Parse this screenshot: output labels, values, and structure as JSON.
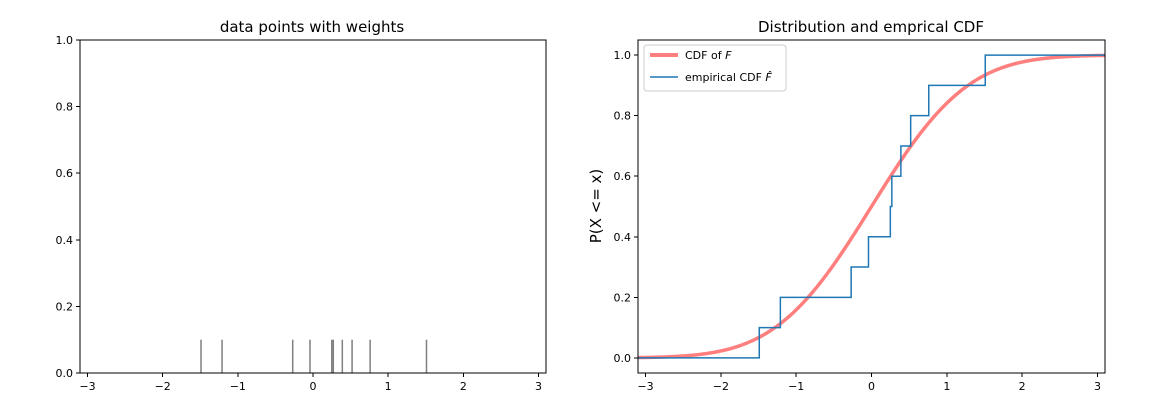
{
  "chart_data": [
    {
      "type": "rug",
      "title": "data points with weights",
      "xlabel": "",
      "ylabel": "",
      "xlim": [
        -3.1,
        3.1
      ],
      "ylim": [
        0.0,
        1.0
      ],
      "xticks": [
        -3,
        -2,
        -1,
        0,
        1,
        2,
        3
      ],
      "yticks": [
        0.0,
        0.2,
        0.4,
        0.6,
        0.8,
        1.0
      ],
      "xtick_labels": [
        "−3",
        "−2",
        "−1",
        "0",
        "1",
        "2",
        "3"
      ],
      "ytick_labels": [
        "0.0",
        "0.2",
        "0.4",
        "0.6",
        "0.8",
        "1.0"
      ],
      "points": [
        -1.49,
        -1.21,
        -0.27,
        -0.04,
        0.25,
        0.27,
        0.39,
        0.52,
        0.76,
        1.51
      ],
      "weight": 0.1,
      "color": "#808080"
    },
    {
      "type": "line",
      "title": "Distribution and emprical CDF",
      "xlabel": "",
      "ylabel": "P(X <= x)",
      "xlim": [
        -3.1,
        3.1
      ],
      "ylim": [
        -0.05,
        1.05
      ],
      "xticks": [
        -3,
        -2,
        -1,
        0,
        1,
        2,
        3
      ],
      "yticks": [
        0.0,
        0.2,
        0.4,
        0.6,
        0.8,
        1.0
      ],
      "xtick_labels": [
        "−3",
        "−2",
        "−1",
        "0",
        "1",
        "2",
        "3"
      ],
      "ytick_labels": [
        "0.0",
        "0.2",
        "0.4",
        "0.6",
        "0.8",
        "1.0"
      ],
      "legend_position": "top-left",
      "series": [
        {
          "name_plain": "CDF of ",
          "name_math": "F",
          "kind": "normal-cdf",
          "mean": 0.0,
          "std": 1.0,
          "color": "#ff7f7f"
        },
        {
          "name_plain": "empirical CDF ",
          "name_math": "F̂",
          "kind": "step",
          "x": [
            -1.49,
            -1.21,
            -0.27,
            -0.04,
            0.25,
            0.27,
            0.39,
            0.52,
            0.76,
            1.51
          ],
          "y": [
            0.1,
            0.2,
            0.3,
            0.4,
            0.5,
            0.6,
            0.7,
            0.8,
            0.9,
            1.0
          ],
          "color": "#1f77b4"
        }
      ]
    }
  ]
}
